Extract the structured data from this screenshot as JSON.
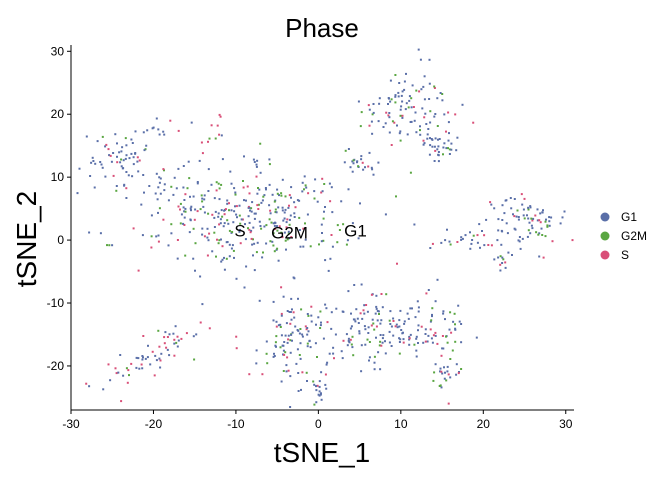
{
  "chart_data": {
    "type": "scatter",
    "title": "Phase",
    "xlabel": "tSNE_1",
    "ylabel": "tSNE_2",
    "xlim": [
      -30,
      31
    ],
    "ylim": [
      -27,
      31
    ],
    "xticks": [
      -30,
      -20,
      -10,
      0,
      10,
      20,
      30
    ],
    "yticks": [
      -20,
      -10,
      0,
      10,
      20,
      30
    ],
    "xtick_labels": [
      "-30",
      "-20",
      "-10",
      "0",
      "10",
      "20",
      "30"
    ],
    "ytick_labels": [
      "-20",
      "-10",
      "0",
      "10",
      "20",
      "30"
    ],
    "grid": false,
    "legend_position": "right",
    "series": [
      {
        "name": "G1",
        "color": "#5a6fa8"
      },
      {
        "name": "G2M",
        "color": "#5aa642"
      },
      {
        "name": "S",
        "color": "#d94f78"
      }
    ],
    "annotations": [
      {
        "text": "S",
        "x": -9.5,
        "y": 1.5
      },
      {
        "text": "G2M",
        "x": -3.5,
        "y": 1.2
      },
      {
        "text": "G1",
        "x": 4.5,
        "y": 1.5
      }
    ],
    "clusters": [
      {
        "cx": 11,
        "cy": 21,
        "sx": 2.8,
        "sy": 3.2,
        "n": 110,
        "w": [
          0.75,
          0.12,
          0.13
        ]
      },
      {
        "cx": 15,
        "cy": 15,
        "sx": 1.3,
        "sy": 1.2,
        "n": 30,
        "w": [
          0.8,
          0.1,
          0.1
        ]
      },
      {
        "cx": 5,
        "cy": 12.5,
        "sx": 1.2,
        "sy": 1.5,
        "n": 22,
        "w": [
          0.85,
          0.1,
          0.05
        ]
      },
      {
        "cx": -24,
        "cy": 13,
        "sx": 2.0,
        "sy": 2.0,
        "n": 65,
        "w": [
          0.8,
          0.1,
          0.1
        ]
      },
      {
        "cx": -20,
        "cy": 17.5,
        "sx": 1.2,
        "sy": 0.7,
        "n": 12,
        "w": [
          0.75,
          0.15,
          0.1
        ]
      },
      {
        "cx": -12,
        "cy": 18,
        "sx": 0.6,
        "sy": 0.8,
        "n": 6,
        "w": [
          0.2,
          0.1,
          0.7
        ]
      },
      {
        "cx": -9,
        "cy": 4,
        "sx": 6.5,
        "sy": 4.2,
        "n": 380,
        "w": [
          0.6,
          0.22,
          0.18
        ]
      },
      {
        "cx": 25,
        "cy": 3,
        "sx": 2.5,
        "sy": 2.2,
        "n": 85,
        "w": [
          0.78,
          0.12,
          0.1
        ]
      },
      {
        "cx": 18,
        "cy": 0,
        "sx": 2.0,
        "sy": 1.0,
        "n": 25,
        "w": [
          0.6,
          0.1,
          0.3
        ]
      },
      {
        "cx": 22,
        "cy": -3,
        "sx": 1.0,
        "sy": 0.8,
        "n": 12,
        "w": [
          0.5,
          0.1,
          0.4
        ]
      },
      {
        "cx": -3,
        "cy": -16,
        "sx": 2.5,
        "sy": 4.0,
        "n": 120,
        "w": [
          0.7,
          0.12,
          0.18
        ]
      },
      {
        "cx": 7,
        "cy": -14,
        "sx": 3.0,
        "sy": 3.2,
        "n": 130,
        "w": [
          0.72,
          0.13,
          0.15
        ]
      },
      {
        "cx": 14,
        "cy": -13,
        "sx": 2.2,
        "sy": 2.2,
        "n": 55,
        "w": [
          0.75,
          0.15,
          0.1
        ]
      },
      {
        "cx": 15.5,
        "cy": -21,
        "sx": 1.0,
        "sy": 2.0,
        "n": 30,
        "w": [
          0.7,
          0.2,
          0.1
        ]
      },
      {
        "cx": 0,
        "cy": -24,
        "sx": 0.5,
        "sy": 0.7,
        "n": 10,
        "w": [
          0.9,
          0.05,
          0.05
        ]
      },
      {
        "cx": -20,
        "cy": -18.5,
        "sx": 3.5,
        "sy": 3.0,
        "n": 65,
        "w": [
          0.5,
          0.12,
          0.38
        ],
        "corr": 0.85
      }
    ]
  },
  "legend": {
    "items": [
      {
        "label": "G1",
        "color": "#5a6fa8"
      },
      {
        "label": "G2M",
        "color": "#5aa642"
      },
      {
        "label": "S",
        "color": "#d94f78"
      }
    ]
  }
}
